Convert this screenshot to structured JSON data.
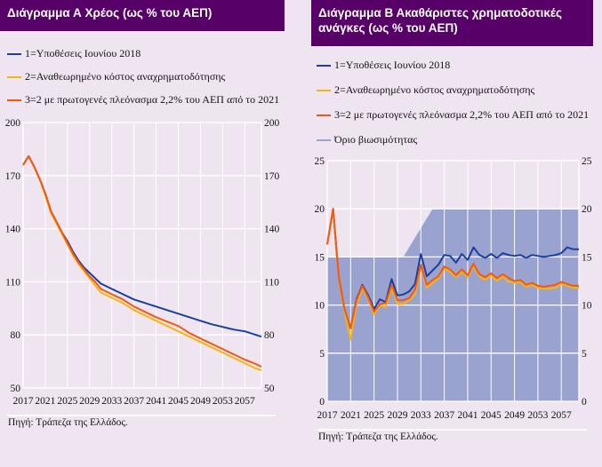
{
  "chartA": {
    "title": "Διάγραμμα Α Χρέος (ως % του ΑΕΠ)",
    "source": "Πηγή: Τράπεζα της Ελλάδος.",
    "legend": [
      "1=Υποθέσεις Ιουνίου 2018",
      "2=Αναθεωρημένο κόστος αναχρηματοδότησης",
      "3=2 με πρωτογενές πλεόνασμα 2,2% του ΑΕΠ από το 2021"
    ]
  },
  "chartB": {
    "title": "Διάγραμμα Β Ακαθάριστες χρηματοδοτικές ανάγκες (ως % του ΑΕΠ)",
    "source": "Πηγή: Τράπεζα της Ελλάδος.",
    "legend": [
      "1=Υποθέσεις Ιουνίου 2018",
      "2=Αναθεωρημένο κόστος αναχρηματοδότησης",
      "3=2 με πρωτογενές πλεόνασμα 2,2% του ΑΕΠ από το 2021",
      "Όριο βιωσιμότητας"
    ]
  },
  "colors": {
    "header": "#560068",
    "series1": "#1a3f9c",
    "series2": "#f7b40f",
    "series3": "#f4570f",
    "threshold": "#9aa3d0",
    "background": "#efe5f1"
  },
  "chart_data": [
    {
      "type": "line",
      "title": "Διάγραμμα Α Χρέος (ως % του ΑΕΠ)",
      "xlim": [
        2017,
        2060
      ],
      "ylim": [
        50,
        200
      ],
      "xticks": [
        "2017",
        "2021",
        "2025",
        "2029",
        "2033",
        "2037",
        "2041",
        "2045",
        "2049",
        "2053",
        "2057"
      ],
      "yticks": [
        "50",
        "80",
        "110",
        "140",
        "170",
        "200"
      ],
      "grid": true,
      "legend_position": "top",
      "x": [
        2017,
        2018,
        2019,
        2020,
        2021,
        2022,
        2023,
        2024,
        2025,
        2026,
        2027,
        2028,
        2029,
        2030,
        2031,
        2033,
        2035,
        2037,
        2039,
        2041,
        2043,
        2045,
        2047,
        2049,
        2051,
        2053,
        2055,
        2057,
        2059,
        2060
      ],
      "series": [
        {
          "name": "1=Υποθέσεις Ιουνίου 2018",
          "values": [
            176,
            181,
            175,
            168,
            160,
            150,
            144,
            138,
            133,
            127,
            122,
            118,
            115,
            112,
            109,
            106,
            103,
            100,
            98,
            96,
            94,
            92,
            90,
            88,
            86,
            84.5,
            83,
            82,
            80,
            79
          ]
        },
        {
          "name": "2=Αναθεωρημένο κόστος αναχρηματοδότησης",
          "values": [
            176,
            181,
            175,
            168,
            159,
            149,
            143,
            137,
            131,
            125,
            120,
            116,
            112,
            108,
            104,
            101,
            98,
            94,
            91,
            88,
            85,
            82,
            79,
            76,
            73,
            70,
            67,
            64,
            61,
            60
          ]
        },
        {
          "name": "3=2 με πρωτογενές πλεόνασμα 2,2% του ΑΕΠ από το 2021",
          "values": [
            176,
            181,
            175,
            168,
            160,
            150,
            144,
            138,
            132,
            126,
            121,
            117,
            113,
            110,
            106,
            103,
            100,
            96,
            93,
            90,
            87.5,
            85,
            81,
            78,
            75,
            72,
            69,
            66,
            63.5,
            62
          ]
        }
      ]
    },
    {
      "type": "line",
      "title": "Διάγραμμα Β Ακαθάριστες χρηματοδοτικές ανάγκες (ως % του ΑΕΠ)",
      "xlim": [
        2017,
        2060
      ],
      "ylim": [
        0,
        25
      ],
      "xticks": [
        "2017",
        "2021",
        "2025",
        "2029",
        "2033",
        "2037",
        "2041",
        "2045",
        "2049",
        "2053",
        "2057"
      ],
      "yticks": [
        "0",
        "5",
        "10",
        "15",
        "20",
        "25"
      ],
      "grid": true,
      "legend_position": "top",
      "x_start": 2017,
      "series": [
        {
          "name": "1=Υποθέσεις Ιουνίου 2018",
          "values": [
            16.3,
            20,
            12.5,
            9.3,
            7.6,
            10.6,
            12.1,
            11,
            9.6,
            10.6,
            10.3,
            12.7,
            11,
            11.1,
            11.4,
            12.2,
            15.3,
            13,
            13.6,
            14.2,
            15.2,
            15.1,
            14.4,
            15.3,
            14.7,
            16,
            15.2,
            14.9,
            15.3,
            14.9,
            15.4,
            15.2,
            15.1,
            15.2,
            14.9,
            15.2,
            15.1,
            15,
            15.1,
            15.2,
            15.4,
            16,
            15.8,
            15.8
          ]
        },
        {
          "name": "2=Αναθεωρημένο κόστος αναχρηματοδότησης",
          "values": [
            16.3,
            20,
            12.5,
            9.2,
            6.4,
            10.1,
            11.8,
            10.6,
            9,
            10,
            9.8,
            11.8,
            10.1,
            10.1,
            10.5,
            11.1,
            14,
            11.8,
            12.3,
            12.8,
            13.8,
            13.5,
            12.9,
            13.5,
            12.9,
            14.1,
            13,
            12.6,
            13.1,
            12.5,
            13,
            12.4,
            12.3,
            12.4,
            11.9,
            12.1,
            11.8,
            11.7,
            11.7,
            11.8,
            12.2,
            12,
            11.8,
            11.8
          ]
        },
        {
          "name": "3=2 με πρωτογενές πλεόνασμα 2,2% του ΑΕΠ από το 2021",
          "values": [
            16.3,
            20,
            12.8,
            9.5,
            7.6,
            10.5,
            12,
            10.8,
            9.3,
            10.1,
            10.2,
            12.1,
            10.5,
            10.5,
            10.7,
            11.6,
            14.2,
            12.1,
            12.6,
            13,
            14,
            13.7,
            13.1,
            13.7,
            13.1,
            14.3,
            13.2,
            12.9,
            13.3,
            12.8,
            13.2,
            12.8,
            12.5,
            12.6,
            12.1,
            12.3,
            12,
            11.9,
            12,
            12.1,
            12.4,
            12.2,
            12,
            12
          ]
        },
        {
          "name": "Όριο βιωσιμότητας",
          "type": "area",
          "x": [
            2017,
            2030,
            2035,
            2060
          ],
          "values": [
            15,
            15,
            20,
            20
          ]
        }
      ]
    }
  ]
}
